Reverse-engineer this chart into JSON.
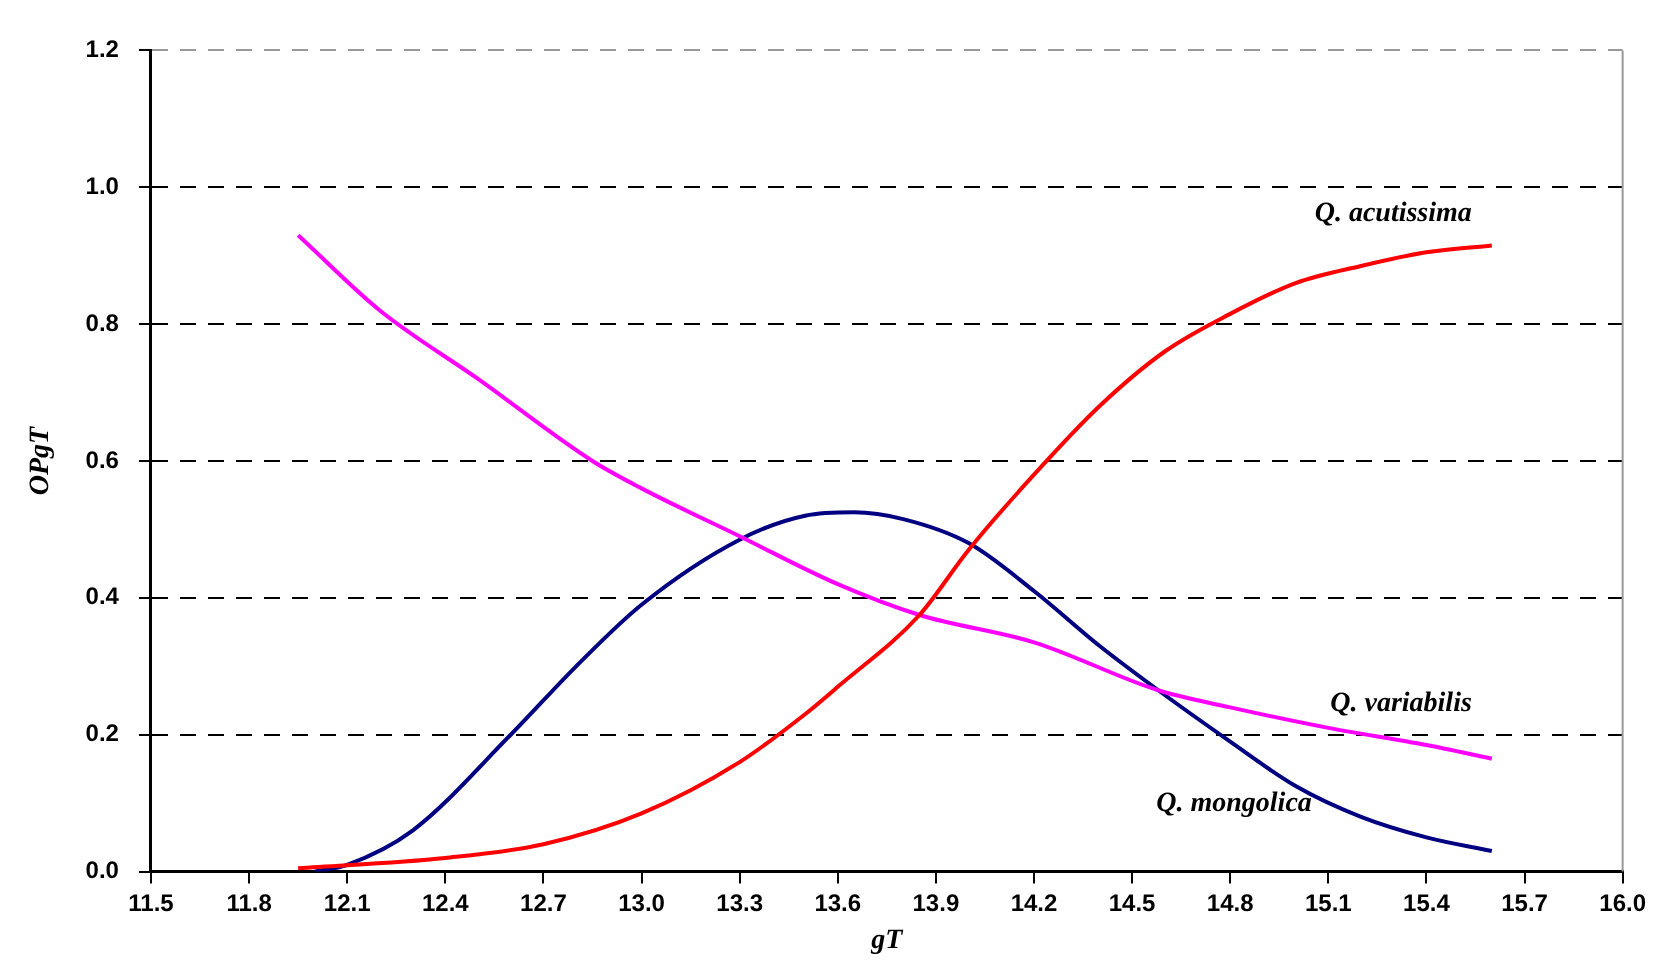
{
  "chart_data": {
    "type": "line",
    "xlabel": "gT",
    "ylabel": "OPgT",
    "xlim": [
      11.5,
      16.0
    ],
    "xticks": [
      11.5,
      11.8,
      12.1,
      12.4,
      12.7,
      {
        "value": 13,
        "label": "13.0"
      },
      13.3,
      13.6,
      13.9,
      14.2,
      14.5,
      14.8,
      15.1,
      15.4,
      15.7,
      {
        "value": 16,
        "label": "16.0"
      }
    ],
    "ylim": [
      0,
      1.2
    ],
    "yticks": [
      {
        "value": 0,
        "label": "0.0"
      },
      0.2,
      0.4,
      0.6,
      0.8,
      {
        "value": 1,
        "label": "1.0"
      },
      1.2
    ],
    "grid": "y",
    "legend": false,
    "marker": "none",
    "line_style": "solid",
    "series": [
      {
        "name": "Q. acutissima",
        "color": "#ff0000",
        "x": [
          11.95,
          12.4,
          12.7,
          13.0,
          13.3,
          13.5,
          13.6,
          13.85,
          14.0,
          14.2,
          14.4,
          14.6,
          14.8,
          15.0,
          15.2,
          15.4,
          15.6
        ],
        "values": [
          0.005,
          0.02,
          0.04,
          0.085,
          0.16,
          0.23,
          0.27,
          0.375,
          0.47,
          0.58,
          0.68,
          0.76,
          0.815,
          0.86,
          0.885,
          0.905,
          0.915
        ]
      },
      {
        "name": "Q. variabilis",
        "color": "#ff00ff",
        "x": [
          11.95,
          12.2,
          12.5,
          12.85,
          13.0,
          13.3,
          13.6,
          13.85,
          14.2,
          14.58,
          14.8,
          15.1,
          15.4,
          15.6
        ],
        "values": [
          0.93,
          0.82,
          0.72,
          0.6,
          0.56,
          0.49,
          0.42,
          0.375,
          0.335,
          0.265,
          0.24,
          0.21,
          0.185,
          0.165
        ]
      },
      {
        "name": "Q. mongolica",
        "color": "#000080",
        "x": [
          12.0,
          12.1,
          12.3,
          12.6,
          12.8,
          13.0,
          13.3,
          13.5,
          13.65,
          13.8,
          14.0,
          14.2,
          14.4,
          14.58,
          14.8,
          15.0,
          15.2,
          15.4,
          15.6
        ],
        "values": [
          0.0,
          0.01,
          0.06,
          0.2,
          0.3,
          0.39,
          0.485,
          0.52,
          0.525,
          0.515,
          0.48,
          0.41,
          0.33,
          0.265,
          0.19,
          0.125,
          0.08,
          0.05,
          0.03
        ]
      }
    ]
  }
}
